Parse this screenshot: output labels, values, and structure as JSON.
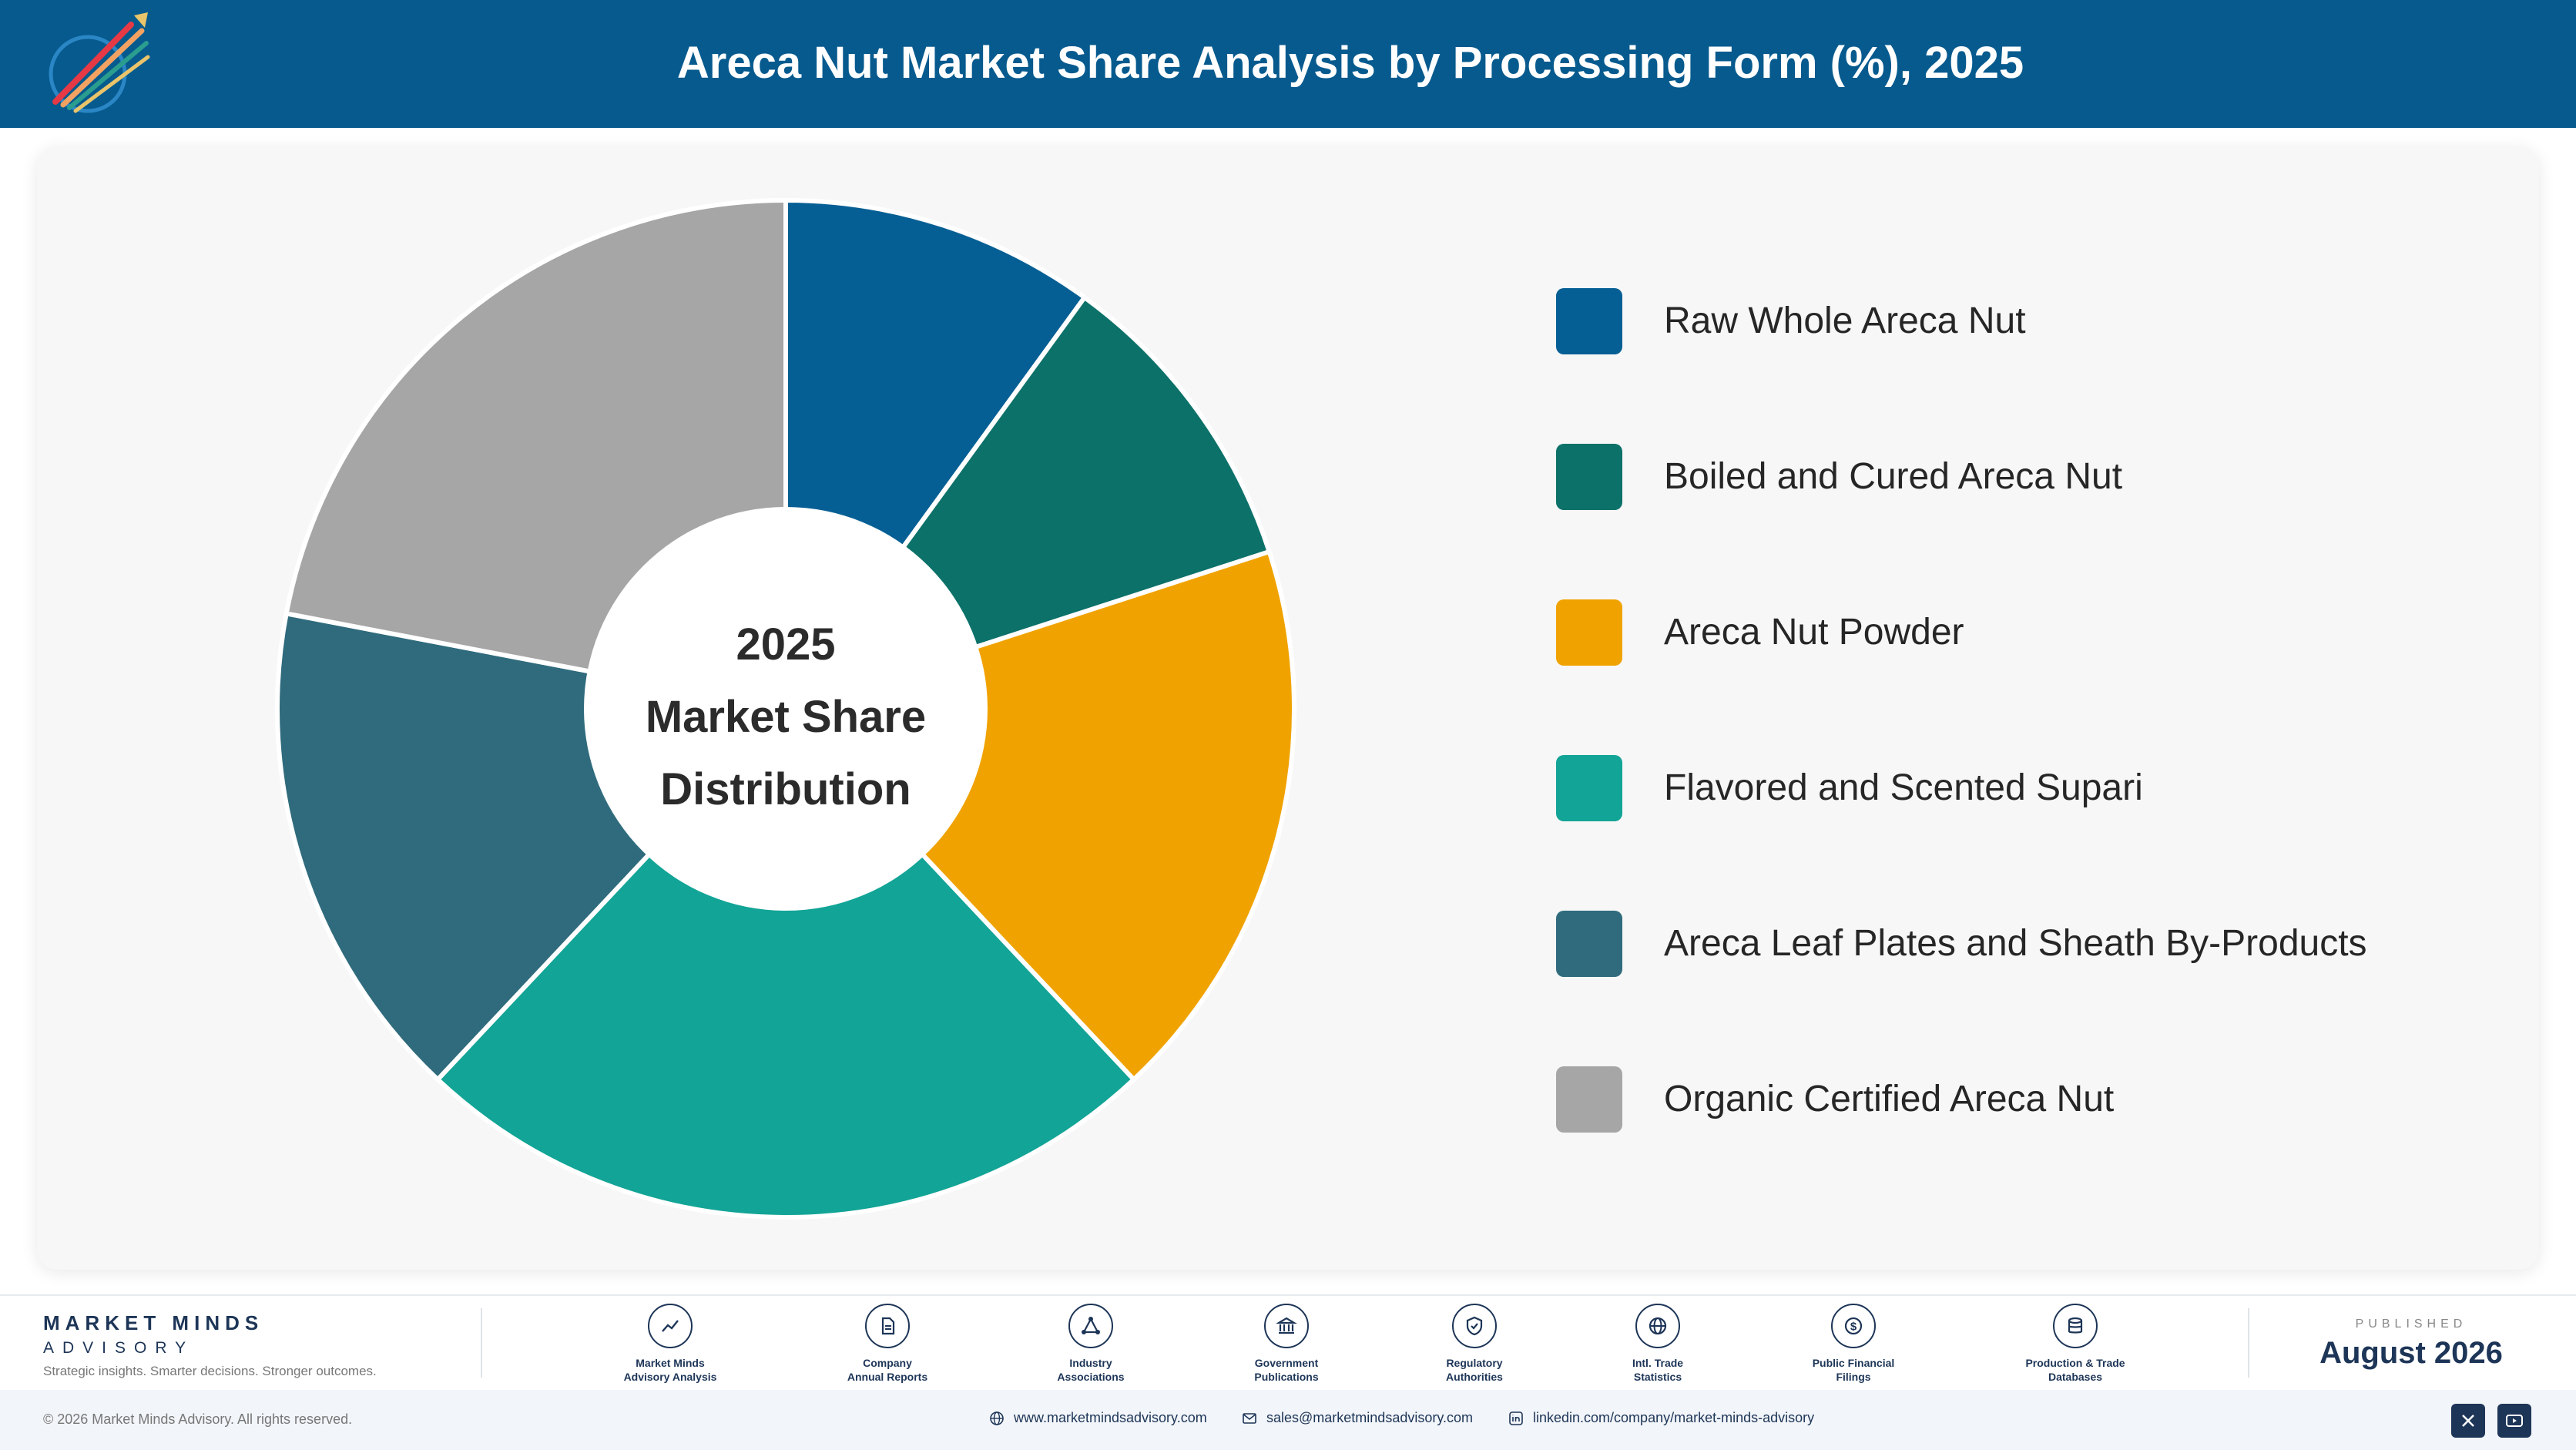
{
  "header": {
    "title": "Areca Nut Market Share Analysis by Processing Form (%), 2025"
  },
  "center": {
    "line1": "2025",
    "line2": "Market Share",
    "line3": "Distribution"
  },
  "chart_data": {
    "type": "pie",
    "variant": "donut",
    "categories": [
      "Raw Whole Areca Nut",
      "Boiled and Cured Areca Nut",
      "Areca Nut Powder",
      "Flavored and Scented Supari",
      "Areca Leaf Plates and Sheath By-Products",
      "Organic Certified Areca Nut"
    ],
    "values": [
      10,
      10,
      18,
      24,
      16,
      22
    ],
    "colors": [
      "#065f94",
      "#0c7169",
      "#f0a300",
      "#12a496",
      "#2f6b7d",
      "#a6a6a6"
    ],
    "legend_position": "right"
  },
  "footer": {
    "brand_name": "MARKET MINDS",
    "brand_sub": "ADVISORY",
    "tagline": "Strategic insights. Smarter decisions. Stronger outcomes.",
    "sources": [
      {
        "line1": "Market Minds",
        "line2": "Advisory Analysis",
        "icon": "chart-line-icon"
      },
      {
        "line1": "Company",
        "line2": "Annual Reports",
        "icon": "document-icon"
      },
      {
        "line1": "Industry",
        "line2": "Associations",
        "icon": "network-icon"
      },
      {
        "line1": "Government",
        "line2": "Publications",
        "icon": "building-icon"
      },
      {
        "line1": "Regulatory",
        "line2": "Authorities",
        "icon": "shield-icon"
      },
      {
        "line1": "Intl. Trade",
        "line2": "Statistics",
        "icon": "globe-icon"
      },
      {
        "line1": "Public Financial",
        "line2": "Filings",
        "icon": "dollar-icon"
      },
      {
        "line1": "Production & Trade",
        "line2": "Databases",
        "icon": "database-icon"
      }
    ],
    "published_label": "PUBLISHED",
    "published_date": "August 2026"
  },
  "bottom": {
    "copyright": "© 2026 Market Minds Advisory. All rights reserved.",
    "website": "www.marketmindsadvisory.com",
    "email": "sales@marketmindsadvisory.com",
    "linkedin": "linkedin.com/company/market-minds-advisory"
  }
}
